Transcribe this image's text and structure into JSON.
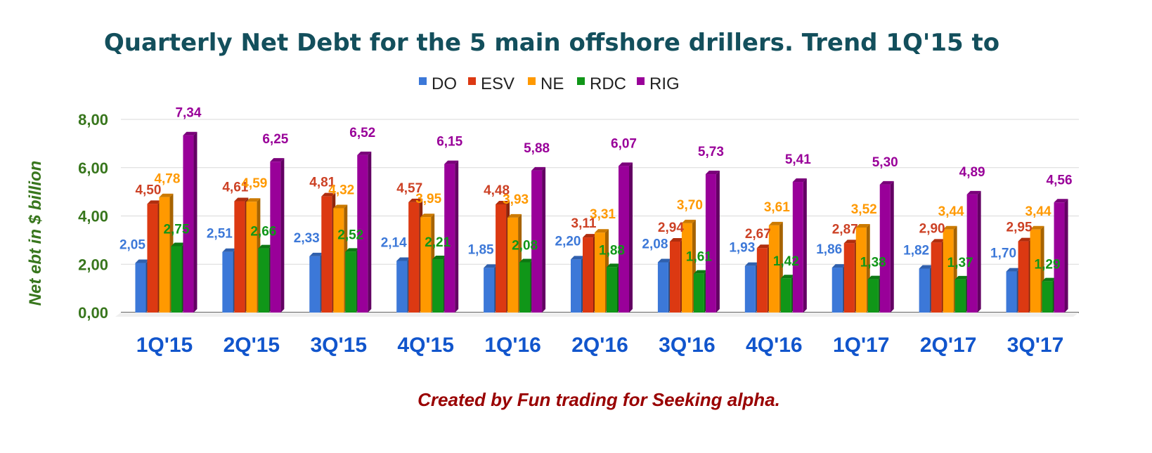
{
  "chart_data": {
    "type": "bar",
    "title": "Quarterly Net Debt for the 5 main offshore drillers. Trend 1Q'15 to",
    "ylabel": "Net ebt in $ billion",
    "xlabel": "Created by Fun trading for Seeking alpha.",
    "categories": [
      "1Q'15",
      "2Q'15",
      "3Q'15",
      "4Q'15",
      "1Q'16",
      "2Q'16",
      "3Q'16",
      "4Q'16",
      "1Q'17",
      "2Q'17",
      "3Q'17"
    ],
    "yticks": [
      "0,00",
      "2,00",
      "4,00",
      "6,00",
      "8,00"
    ],
    "ylim": [
      0,
      8.6
    ],
    "grid": true,
    "legend_position": "top",
    "series": [
      {
        "name": "DO",
        "color": "#3c78d8",
        "label_color": "#3c78d8",
        "values": [
          2.05,
          2.51,
          2.33,
          2.14,
          1.85,
          2.2,
          2.08,
          1.93,
          1.86,
          1.82,
          1.7
        ],
        "labels": [
          "2,05",
          "2,51",
          "2,33",
          "2,14",
          "1,85",
          "2,20",
          "2,08",
          "1,93",
          "1,86",
          "1,82",
          "1,70"
        ]
      },
      {
        "name": "ESV",
        "color": "#dc3912",
        "label_color": "#cc4125",
        "values": [
          4.5,
          4.61,
          4.81,
          4.57,
          4.48,
          3.11,
          2.94,
          2.67,
          2.87,
          2.9,
          2.95
        ],
        "labels": [
          "4,50",
          "4,61",
          "4,81",
          "4,57",
          "4,48",
          "3,11",
          "2,94",
          "2,67",
          "2,87",
          "2,90",
          "2,95"
        ]
      },
      {
        "name": "NE",
        "color": "#ff9900",
        "label_color": "#ff9900",
        "values": [
          4.78,
          4.59,
          4.32,
          3.95,
          3.93,
          3.31,
          3.7,
          3.61,
          3.52,
          3.44,
          3.44
        ],
        "labels": [
          "4,78",
          "4,59",
          "4,32",
          "3,95",
          "3,93",
          "3,31",
          "3,70",
          "3,61",
          "3,52",
          "3,44",
          "3,44"
        ]
      },
      {
        "name": "RDC",
        "color": "#109618",
        "label_color": "#109618",
        "values": [
          2.75,
          2.66,
          2.52,
          2.21,
          2.08,
          1.88,
          1.61,
          1.42,
          1.38,
          1.37,
          1.29
        ],
        "labels": [
          "2,75",
          "2,66",
          "2,52",
          "2,21",
          "2,08",
          "1,88",
          "1,61",
          "1,42",
          "1,38",
          "1,37",
          "1,29"
        ]
      },
      {
        "name": "RIG",
        "color": "#990099",
        "label_color": "#990099",
        "values": [
          7.34,
          6.25,
          6.52,
          6.15,
          5.88,
          6.07,
          5.73,
          5.41,
          5.3,
          4.89,
          4.56
        ],
        "labels": [
          "7,34",
          "6,25",
          "6,52",
          "6,15",
          "5,88",
          "6,07",
          "5,73",
          "5,41",
          "5,30",
          "4,89",
          "4,56"
        ]
      }
    ]
  }
}
